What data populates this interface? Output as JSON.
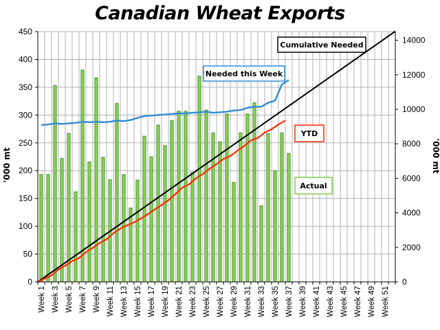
{
  "chart_data": {
    "type": "bar",
    "title": "Canadian Wheat Exports",
    "ylabel_left": "'000 mt",
    "ylabel_right": "'000 mt",
    "ylim_left": [
      0,
      450
    ],
    "ylim_right": [
      0,
      14500
    ],
    "yticks_left": [
      0,
      50,
      100,
      150,
      200,
      250,
      300,
      350,
      400,
      450
    ],
    "yticks_right": [
      0,
      2000,
      4000,
      6000,
      8000,
      10000,
      12000,
      14000
    ],
    "xtick_labels": [
      "Week 1",
      "Week 3",
      "Week 5",
      "Week 7",
      "Week 9",
      "Week 11",
      "Week 13",
      "Week 15",
      "Week 17",
      "Week 19",
      "Week 21",
      "Week 23",
      "Week 25",
      "Week 27",
      "Week 29",
      "Week 31",
      "Week 33",
      "Week 35",
      "Week 37",
      "Week 39",
      "Week 41",
      "Week 43",
      "Week 45",
      "Week 47",
      "Week 49",
      "Week 51"
    ],
    "num_weeks": 52,
    "grid": true,
    "colors": {
      "bar_fill": "#8ed05a",
      "bar_stroke": "#3a8a1e",
      "needed_week": "#2e8bd8",
      "ytd": "#ff2a00",
      "cumulative": "#000000",
      "grid": "#b0b0b0"
    },
    "series": [
      {
        "name": "Actual",
        "axis": "left",
        "kind": "bar",
        "values": [
          193,
          193,
          353,
          222,
          267,
          162,
          381,
          216,
          367,
          224,
          184,
          321,
          193,
          133,
          183,
          262,
          225,
          282,
          245,
          290,
          307,
          307,
          197,
          370,
          309,
          268,
          252,
          302,
          179,
          268,
          302,
          322,
          137,
          267,
          200,
          268,
          231
        ]
      },
      {
        "name": "Needed this Week",
        "axis": "left",
        "kind": "line",
        "values": [
          282,
          283,
          285,
          284,
          285,
          286,
          288,
          287,
          288,
          287,
          288,
          290,
          289,
          291,
          295,
          298,
          299,
          300,
          301,
          302,
          303,
          303,
          304,
          305,
          306,
          304,
          305,
          306,
          308,
          309,
          313,
          315,
          315,
          322,
          326,
          355,
          363
        ]
      },
      {
        "name": "YTD",
        "axis": "right",
        "kind": "line",
        "values": [
          0,
          190,
          380,
          720,
          940,
          1210,
          1380,
          1730,
          1970,
          2250,
          2470,
          2820,
          3080,
          3280,
          3450,
          3670,
          3920,
          4200,
          4450,
          4730,
          5080,
          5460,
          5650,
          6000,
          6250,
          6560,
          6820,
          7120,
          7290,
          7590,
          7870,
          8200,
          8340,
          8650,
          8850,
          9120,
          9350
        ]
      },
      {
        "name": "Cumulative Needed",
        "axis": "right",
        "kind": "line",
        "x": [
          0,
          52
        ],
        "values": [
          0,
          14520
        ]
      }
    ],
    "legend": [
      {
        "label": "Cumulative Needed",
        "series": "Cumulative Needed"
      },
      {
        "label": "Needed this Week",
        "series": "Needed this Week"
      },
      {
        "label": "YTD",
        "series": "YTD"
      },
      {
        "label": "Actual",
        "series": "Actual"
      }
    ]
  }
}
